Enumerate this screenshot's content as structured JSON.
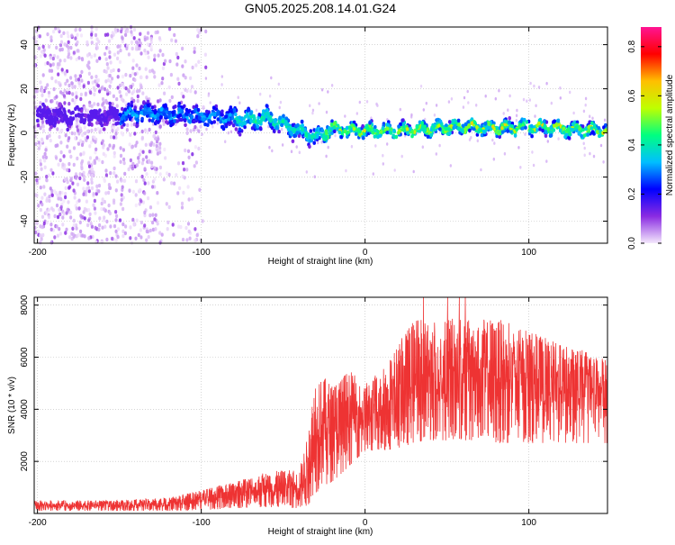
{
  "title": "GN05.2025.208.14.01.G24",
  "chart_data": [
    {
      "type": "heatmap",
      "name": "spectrogram",
      "xlabel": "Height of straight line (km)",
      "ylabel": "Frequency (Hz)",
      "xlim": [
        -202,
        148
      ],
      "ylim": [
        -50,
        48
      ],
      "xticks": [
        -200,
        -100,
        0,
        100
      ],
      "xtick_labels": [
        "-200",
        "-100",
        "0",
        "100"
      ],
      "yticks": [
        -40,
        -20,
        0,
        20,
        40
      ],
      "ytick_labels": [
        "-40",
        "-20",
        "0",
        "20",
        "40"
      ],
      "colorbar": {
        "label": "Normalized spectral amplitude",
        "range": [
          0,
          0.88
        ],
        "ticks": [
          0,
          0.2,
          0.4,
          0.6,
          0.8
        ],
        "tick_labels": [
          "0.0",
          "0.2",
          "0.4",
          "0.6",
          "0.8"
        ],
        "colors": [
          "#f4e8fc",
          "#8a2be2",
          "#0000ff",
          "#00bfff",
          "#00ff80",
          "#bfff00",
          "#ffbf00",
          "#ff0000",
          "#ff1493"
        ]
      },
      "ridge": {
        "x": [
          -200,
          -170,
          -150,
          -130,
          -110,
          -90,
          -70,
          -60,
          -50,
          -40,
          -30,
          -20,
          -10,
          0,
          20,
          40,
          60,
          80,
          100,
          120,
          145
        ],
        "frequency": [
          8,
          7,
          8,
          9,
          8,
          7,
          6,
          7,
          4,
          1,
          -2,
          2,
          1,
          1,
          1,
          2,
          3,
          2,
          3,
          2,
          1
        ]
      },
      "grid": true
    },
    {
      "type": "line",
      "name": "snr",
      "xlabel": "Height of straight line (km)",
      "ylabel": "SNR (10 * v/v)",
      "xlim": [
        -202,
        148
      ],
      "ylim": [
        0,
        8300
      ],
      "xticks": [
        -200,
        -100,
        0,
        100
      ],
      "xtick_labels": [
        "-200",
        "-100",
        "0",
        "100"
      ],
      "yticks": [
        2000,
        4000,
        6000,
        8000
      ],
      "ytick_labels": [
        "2000",
        "4000",
        "6000",
        "8000"
      ],
      "color": "#ee3333",
      "grid": true,
      "envelope": {
        "x": [
          -202,
          -150,
          -120,
          -100,
          -80,
          -60,
          -40,
          -35,
          -30,
          -20,
          -10,
          0,
          10,
          20,
          30,
          40,
          60,
          80,
          100,
          120,
          148
        ],
        "low": [
          100,
          100,
          100,
          120,
          200,
          250,
          200,
          300,
          800,
          1200,
          1800,
          2400,
          2400,
          2500,
          2700,
          2800,
          2800,
          2700,
          2700,
          2700,
          2700
        ],
        "high": [
          500,
          500,
          600,
          900,
          1200,
          1600,
          1700,
          3000,
          5500,
          5000,
          5500,
          5000,
          5500,
          6500,
          7500,
          7500,
          7500,
          7500,
          7000,
          6500,
          6000
        ]
      }
    }
  ]
}
